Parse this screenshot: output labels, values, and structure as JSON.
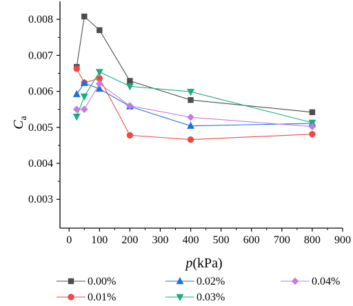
{
  "chart_data": {
    "type": "line",
    "xlabel": "p(kPa)",
    "xlabel_italic": "p",
    "xlabel_rest": "(kPa)",
    "ylabel": "Ca",
    "ylabel_main": "C",
    "ylabel_sub": "a",
    "xlim": [
      -30,
      900
    ],
    "ylim": [
      0.0022,
      0.0085
    ],
    "xticks": [
      0,
      100,
      200,
      300,
      400,
      500,
      600,
      700,
      800,
      900
    ],
    "xtick_labels": [
      "0",
      "100",
      "200",
      "300",
      "400",
      "500",
      "600",
      "700",
      "800",
      "900"
    ],
    "yticks": [
      0.003,
      0.004,
      0.005,
      0.006,
      0.007,
      0.008
    ],
    "ytick_labels": [
      "0.003",
      "0.004",
      "0.005",
      "0.006",
      "0.007",
      "0.008"
    ],
    "grid": false,
    "legend_position": "bottom",
    "series": [
      {
        "name": "0.00%",
        "color": "#4d4d4d",
        "marker": "square",
        "x": [
          25,
          50,
          100,
          200,
          400,
          800
        ],
        "y": [
          0.00668,
          0.00808,
          0.0077,
          0.00629,
          0.00576,
          0.00542
        ]
      },
      {
        "name": "0.01%",
        "color": "#f04848",
        "marker": "circle",
        "x": [
          25,
          50,
          100,
          200,
          400,
          800
        ],
        "y": [
          0.00663,
          0.00624,
          0.00636,
          0.00478,
          0.00466,
          0.00481
        ]
      },
      {
        "name": "0.02%",
        "color": "#1a73d9",
        "marker": "triangle-up",
        "x": [
          25,
          50,
          100,
          200,
          400,
          800
        ],
        "y": [
          0.00592,
          0.00623,
          0.00607,
          0.00558,
          0.00504,
          0.00511
        ]
      },
      {
        "name": "0.03%",
        "color": "#1eab7f",
        "marker": "triangle-down",
        "x": [
          25,
          50,
          100,
          200,
          400,
          800
        ],
        "y": [
          0.0053,
          0.00586,
          0.00654,
          0.00614,
          0.00599,
          0.00513
        ]
      },
      {
        "name": "0.04%",
        "color": "#c37ee0",
        "marker": "diamond",
        "x": [
          25,
          50,
          100,
          200,
          400,
          800
        ],
        "y": [
          0.0055,
          0.0055,
          0.00621,
          0.0056,
          0.00528,
          0.00502
        ]
      }
    ]
  }
}
